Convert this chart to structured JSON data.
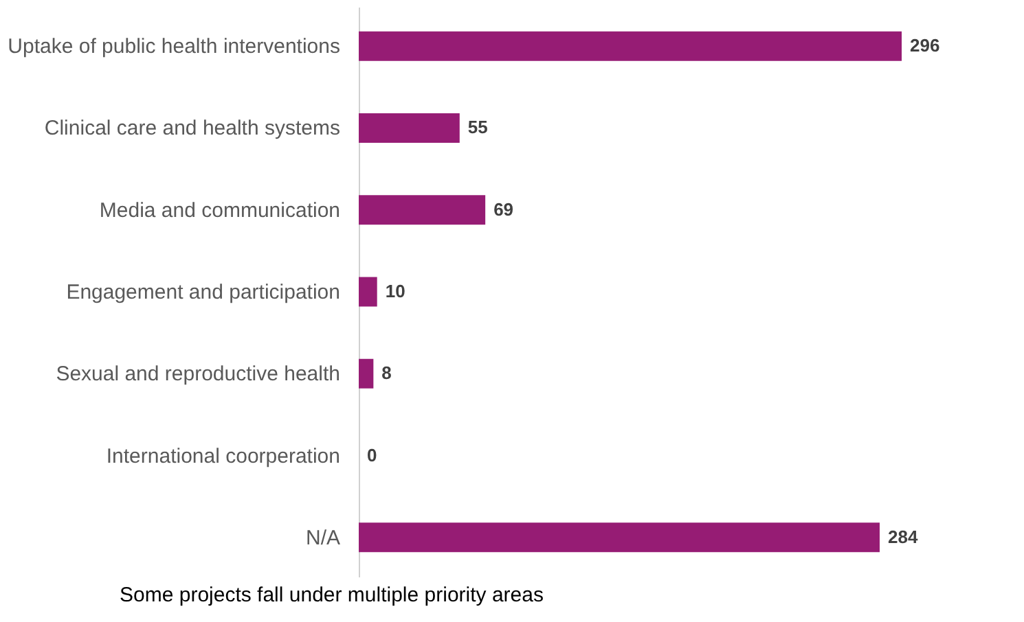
{
  "chart_data": {
    "type": "bar",
    "orientation": "horizontal",
    "categories": [
      "Uptake of public health interventions",
      "Clinical care and health systems",
      "Media and communication",
      "Engagement and participation",
      "Sexual and reproductive health",
      "International coorperation",
      "N/A"
    ],
    "values": [
      296,
      55,
      69,
      10,
      8,
      0,
      284
    ],
    "color": "#961c74",
    "data_labels": true,
    "annotations": [
      "Some projects fall under multiple priority areas"
    ]
  }
}
